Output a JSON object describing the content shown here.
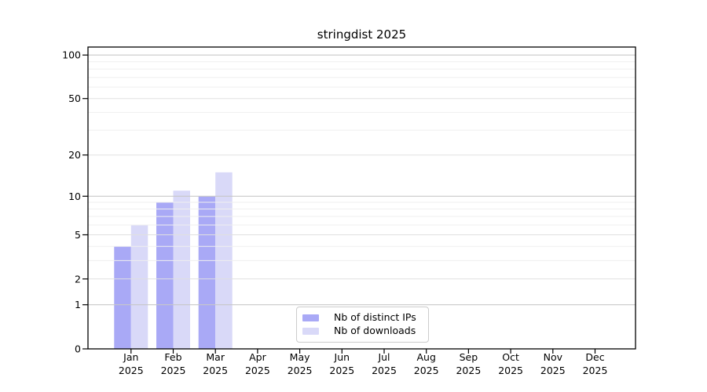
{
  "chart_data": {
    "type": "bar",
    "title": "stringdist 2025",
    "categories": [
      {
        "month": "Jan",
        "year": "2025"
      },
      {
        "month": "Feb",
        "year": "2025"
      },
      {
        "month": "Mar",
        "year": "2025"
      },
      {
        "month": "Apr",
        "year": "2025"
      },
      {
        "month": "May",
        "year": "2025"
      },
      {
        "month": "Jun",
        "year": "2025"
      },
      {
        "month": "Jul",
        "year": "2025"
      },
      {
        "month": "Aug",
        "year": "2025"
      },
      {
        "month": "Sep",
        "year": "2025"
      },
      {
        "month": "Oct",
        "year": "2025"
      },
      {
        "month": "Nov",
        "year": "2025"
      },
      {
        "month": "Dec",
        "year": "2025"
      }
    ],
    "series": [
      {
        "name": "Nb of distinct IPs",
        "color": "#a9a9f6",
        "values": [
          4,
          9,
          10,
          null,
          null,
          null,
          null,
          null,
          null,
          null,
          null,
          null
        ]
      },
      {
        "name": "Nb of downloads",
        "color": "#d9d9f8",
        "values": [
          6,
          11,
          15,
          null,
          null,
          null,
          null,
          null,
          null,
          null,
          null,
          null
        ]
      }
    ],
    "y_axis": {
      "scale": "log1p",
      "tick_values": [
        0,
        1,
        2,
        5,
        10,
        20,
        50,
        100
      ],
      "tick_labels": [
        "0",
        "1",
        "2",
        "5",
        "10",
        "20",
        "50",
        "100"
      ],
      "minor_gridlines": [
        3,
        4,
        6,
        7,
        8,
        9,
        30,
        40,
        60,
        70,
        80,
        90
      ],
      "ylim": [
        0,
        114
      ]
    },
    "legend": {
      "position": "lower center"
    },
    "grid": "on",
    "text_color": "#000000"
  }
}
